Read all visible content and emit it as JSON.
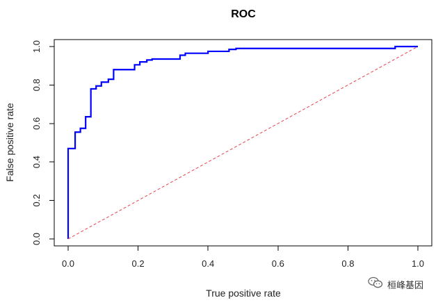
{
  "chart_data": {
    "type": "line",
    "title": "ROC",
    "xlabel": "True positive rate",
    "ylabel": "False positive rate",
    "xlim": [
      0,
      1
    ],
    "ylim": [
      0,
      1
    ],
    "x_ticks": [
      0.0,
      0.2,
      0.4,
      0.6,
      0.8,
      1.0
    ],
    "y_ticks": [
      0.0,
      0.2,
      0.4,
      0.6,
      0.8,
      1.0
    ],
    "x_tick_labels": [
      "0.0",
      "0.2",
      "0.4",
      "0.6",
      "0.8",
      "1.0"
    ],
    "y_tick_labels": [
      "0.0",
      "0.2",
      "0.4",
      "0.6",
      "0.8",
      "1.0"
    ],
    "grid": false,
    "series": [
      {
        "name": "ROC curve",
        "color": "#0000ff",
        "style": "step",
        "points": [
          [
            0.0,
            0.0
          ],
          [
            0.0,
            0.47
          ],
          [
            0.02,
            0.47
          ],
          [
            0.02,
            0.555
          ],
          [
            0.035,
            0.555
          ],
          [
            0.035,
            0.575
          ],
          [
            0.05,
            0.575
          ],
          [
            0.05,
            0.635
          ],
          [
            0.065,
            0.635
          ],
          [
            0.065,
            0.78
          ],
          [
            0.08,
            0.78
          ],
          [
            0.08,
            0.795
          ],
          [
            0.095,
            0.795
          ],
          [
            0.095,
            0.815
          ],
          [
            0.115,
            0.815
          ],
          [
            0.115,
            0.83
          ],
          [
            0.13,
            0.83
          ],
          [
            0.13,
            0.88
          ],
          [
            0.19,
            0.88
          ],
          [
            0.19,
            0.905
          ],
          [
            0.205,
            0.905
          ],
          [
            0.205,
            0.92
          ],
          [
            0.225,
            0.92
          ],
          [
            0.225,
            0.93
          ],
          [
            0.24,
            0.93
          ],
          [
            0.24,
            0.935
          ],
          [
            0.32,
            0.935
          ],
          [
            0.32,
            0.955
          ],
          [
            0.335,
            0.955
          ],
          [
            0.335,
            0.965
          ],
          [
            0.4,
            0.965
          ],
          [
            0.4,
            0.975
          ],
          [
            0.46,
            0.975
          ],
          [
            0.46,
            0.985
          ],
          [
            0.48,
            0.985
          ],
          [
            0.48,
            0.99
          ],
          [
            0.935,
            0.99
          ],
          [
            0.935,
            1.0
          ],
          [
            1.0,
            1.0
          ]
        ]
      },
      {
        "name": "reference",
        "color": "#e8414f",
        "style": "dashed",
        "points": [
          [
            0.0,
            0.0
          ],
          [
            1.0,
            1.0
          ]
        ]
      }
    ]
  },
  "watermark": {
    "text": "桓峰基因",
    "icon": "wechat-icon"
  }
}
